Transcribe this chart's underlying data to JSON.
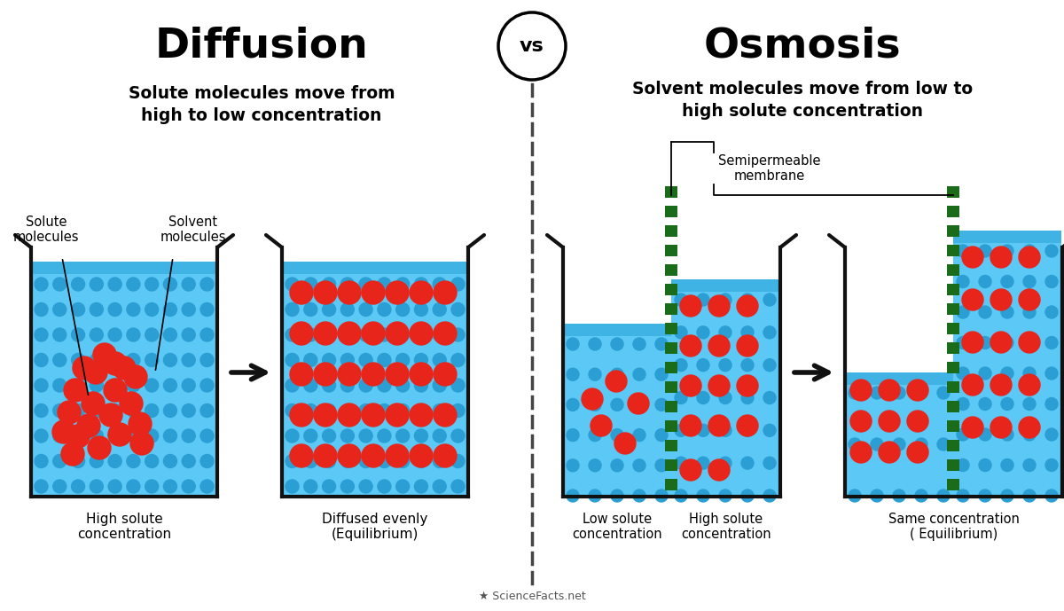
{
  "bg_color": "#ffffff",
  "title_diffusion": "Diffusion",
  "title_osmosis": "Osmosis",
  "vs_text": "vs",
  "subtitle_diffusion": "Solute molecules move from\nhigh to low concentration",
  "subtitle_osmosis": "Solvent molecules move from low to\nhigh solute concentration",
  "water_color": "#5bc8f5",
  "water_dark": "#3ab0e0",
  "solute_color": "#e8251a",
  "solvent_dot_color": "#2b9fd4",
  "membrane_color": "#1a6b1a",
  "beaker_color": "#111111",
  "arrow_color": "#111111",
  "divider_color": "#444444",
  "label_diffusion1": "High solute\nconcentration",
  "label_diffusion2": "Diffused evenly\n(Equilibrium)",
  "label_osmosis1_left": "Low solute\nconcentration",
  "label_osmosis1_right": "High solute\nconcentration",
  "label_osmosis2": "Same concentration\n( Equilibrium)",
  "label_solute": "Solute\nmolecules",
  "label_solvent": "Solvent\nmolecules",
  "label_membrane": "Semipermeable\nmembrane",
  "footer": "ScienceFacts.net"
}
